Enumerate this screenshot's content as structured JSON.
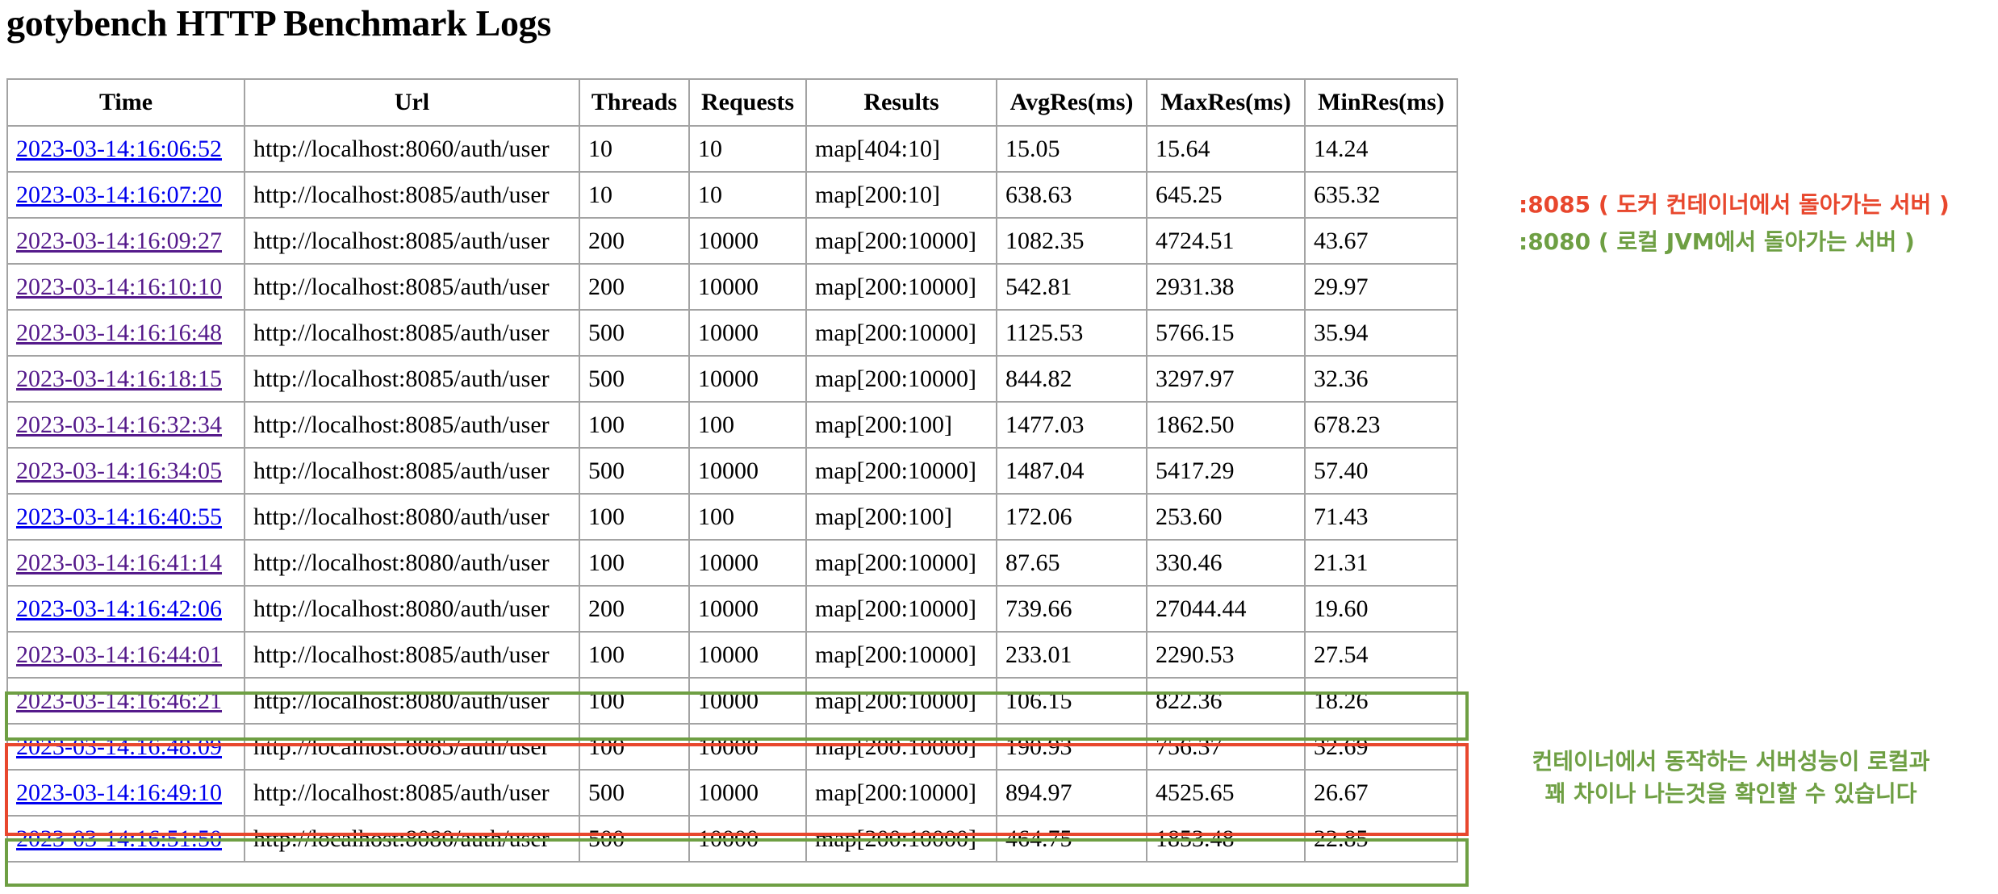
{
  "page": {
    "title": "gotybench HTTP Benchmark Logs"
  },
  "table": {
    "headers": [
      "Time",
      "Url",
      "Threads",
      "Requests",
      "Results",
      "AvgRes(ms)",
      "MaxRes(ms)",
      "MinRes(ms)"
    ],
    "rows": [
      {
        "time": "2023-03-14:16:06:52",
        "visited": false,
        "url": "http://localhost:8060/auth/user",
        "threads": "10",
        "requests": "10",
        "results": "map[404:10]",
        "avg": "15.05",
        "max": "15.64",
        "min": "14.24"
      },
      {
        "time": "2023-03-14:16:07:20",
        "visited": false,
        "url": "http://localhost:8085/auth/user",
        "threads": "10",
        "requests": "10",
        "results": "map[200:10]",
        "avg": "638.63",
        "max": "645.25",
        "min": "635.32"
      },
      {
        "time": "2023-03-14:16:09:27",
        "visited": true,
        "url": "http://localhost:8085/auth/user",
        "threads": "200",
        "requests": "10000",
        "results": "map[200:10000]",
        "avg": "1082.35",
        "max": "4724.51",
        "min": "43.67"
      },
      {
        "time": "2023-03-14:16:10:10",
        "visited": true,
        "url": "http://localhost:8085/auth/user",
        "threads": "200",
        "requests": "10000",
        "results": "map[200:10000]",
        "avg": "542.81",
        "max": "2931.38",
        "min": "29.97"
      },
      {
        "time": "2023-03-14:16:16:48",
        "visited": true,
        "url": "http://localhost:8085/auth/user",
        "threads": "500",
        "requests": "10000",
        "results": "map[200:10000]",
        "avg": "1125.53",
        "max": "5766.15",
        "min": "35.94"
      },
      {
        "time": "2023-03-14:16:18:15",
        "visited": true,
        "url": "http://localhost:8085/auth/user",
        "threads": "500",
        "requests": "10000",
        "results": "map[200:10000]",
        "avg": "844.82",
        "max": "3297.97",
        "min": "32.36"
      },
      {
        "time": "2023-03-14:16:32:34",
        "visited": true,
        "url": "http://localhost:8085/auth/user",
        "threads": "100",
        "requests": "100",
        "results": "map[200:100]",
        "avg": "1477.03",
        "max": "1862.50",
        "min": "678.23"
      },
      {
        "time": "2023-03-14:16:34:05",
        "visited": true,
        "url": "http://localhost:8085/auth/user",
        "threads": "500",
        "requests": "10000",
        "results": "map[200:10000]",
        "avg": "1487.04",
        "max": "5417.29",
        "min": "57.40"
      },
      {
        "time": "2023-03-14:16:40:55",
        "visited": false,
        "url": "http://localhost:8080/auth/user",
        "threads": "100",
        "requests": "100",
        "results": "map[200:100]",
        "avg": "172.06",
        "max": "253.60",
        "min": "71.43"
      },
      {
        "time": "2023-03-14:16:41:14",
        "visited": true,
        "url": "http://localhost:8080/auth/user",
        "threads": "100",
        "requests": "10000",
        "results": "map[200:10000]",
        "avg": "87.65",
        "max": "330.46",
        "min": "21.31"
      },
      {
        "time": "2023-03-14:16:42:06",
        "visited": false,
        "url": "http://localhost:8080/auth/user",
        "threads": "200",
        "requests": "10000",
        "results": "map[200:10000]",
        "avg": "739.66",
        "max": "27044.44",
        "min": "19.60"
      },
      {
        "time": "2023-03-14:16:44:01",
        "visited": true,
        "url": "http://localhost:8085/auth/user",
        "threads": "100",
        "requests": "10000",
        "results": "map[200:10000]",
        "avg": "233.01",
        "max": "2290.53",
        "min": "27.54"
      },
      {
        "time": "2023-03-14:16:46:21",
        "visited": true,
        "url": "http://localhost:8080/auth/user",
        "threads": "100",
        "requests": "10000",
        "results": "map[200:10000]",
        "avg": "106.15",
        "max": "822.36",
        "min": "18.26"
      },
      {
        "time": "2023-03-14:16:48:09",
        "visited": false,
        "url": "http://localhost:8085/auth/user",
        "threads": "100",
        "requests": "10000",
        "results": "map[200:10000]",
        "avg": "190.93",
        "max": "756.37",
        "min": "32.69"
      },
      {
        "time": "2023-03-14:16:49:10",
        "visited": false,
        "url": "http://localhost:8085/auth/user",
        "threads": "500",
        "requests": "10000",
        "results": "map[200:10000]",
        "avg": "894.97",
        "max": "4525.65",
        "min": "26.67"
      },
      {
        "time": "2023-03-14:16:51:50",
        "visited": false,
        "url": "http://localhost:8080/auth/user",
        "threads": "500",
        "requests": "10000",
        "results": "map[200:10000]",
        "avg": "464.75",
        "max": "1853.48",
        "min": "22.85"
      }
    ]
  },
  "annotations": {
    "legend_8085": ":8085 ( 도커 컨테이너에서 돌아가는  서버 )",
    "legend_8080": ":8080 ( 로컬 JVM에서 돌아가는 서버 )",
    "conclusion_line1": "컨테이너에서 동작하는 서버성능이 로컬과",
    "conclusion_line2": "꽤 차이나 나는것을 확인할 수 있습니다"
  },
  "colors": {
    "annotation_red": "#e8472d",
    "annotation_green": "#6e9f43",
    "link_unvisited": "#0000ee",
    "link_visited": "#551a8b"
  }
}
